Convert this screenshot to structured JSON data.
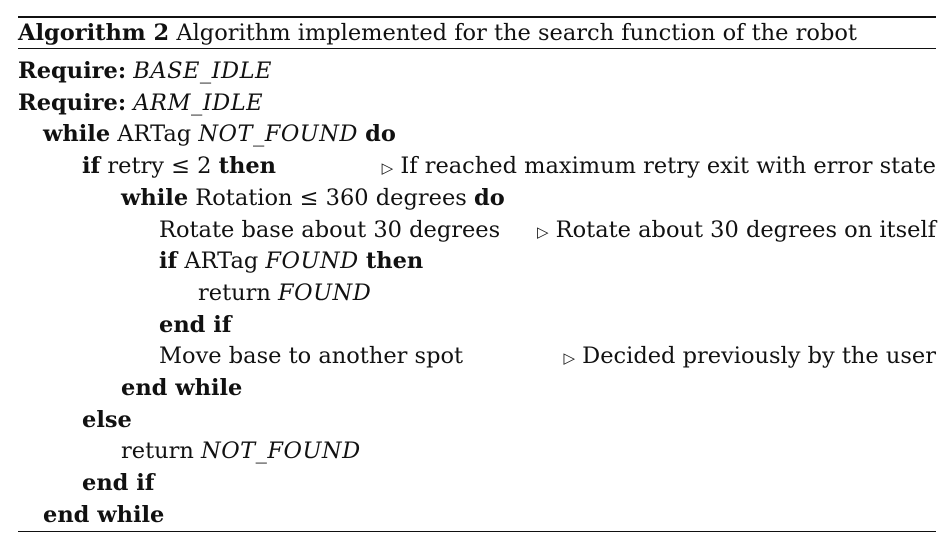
{
  "caption": {
    "label": "Algorithm 2",
    "text": " Algorithm implemented for the search function of the robot"
  },
  "keywords": {
    "require": "Require:",
    "while": "while",
    "do": "do",
    "if": "if",
    "then": "then",
    "else": "else",
    "end_if": "end if",
    "end_while": "end while"
  },
  "lines": {
    "req1_val": "BASE_IDLE",
    "req2_val": "ARM_IDLE",
    "while1_pre": " ARTag ",
    "while1_cond": "NOT_FOUND",
    "if1_cond": " retry ≤ 2 ",
    "while2_cond": " Rotation ≤ 360 degrees ",
    "rotate_stmt": "Rotate base about 30 degrees",
    "if2_pre": " ARTag ",
    "if2_cond": "FOUND",
    "return1_pre": "return ",
    "return1_val": "FOUND",
    "move_stmt": "Move base to another spot",
    "return2_pre": "return ",
    "return2_val": "NOT_FOUND"
  },
  "comments": {
    "triangle_symbol": "▷",
    "retry": " If reached maximum retry exit with error state",
    "rotate": " Rotate about 30 degrees on itself",
    "move": " Decided previously by the user"
  }
}
